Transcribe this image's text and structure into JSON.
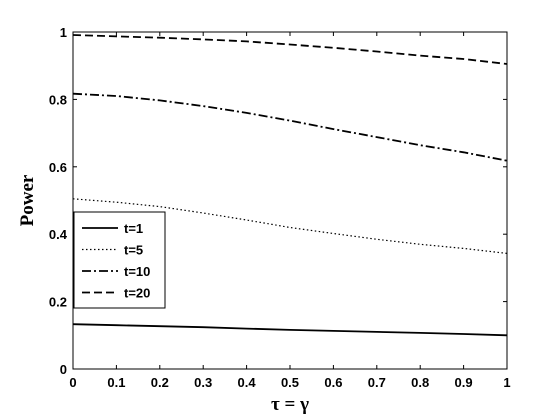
{
  "chart_data": {
    "type": "line",
    "title": "",
    "xlabel": "τ = γ",
    "ylabel": "Power",
    "xlim": [
      0,
      1
    ],
    "ylim": [
      0,
      1
    ],
    "xticks": [
      0,
      0.1,
      0.2,
      0.3,
      0.4,
      0.5,
      0.6,
      0.7,
      0.8,
      0.9,
      1
    ],
    "xtick_labels": [
      "0",
      "0.1",
      "0.2",
      "0.3",
      "0.4",
      "0.5",
      "0.6",
      "0.7",
      "0.8",
      "0.9",
      "1"
    ],
    "yticks": [
      0,
      0.2,
      0.4,
      0.6,
      0.8,
      1
    ],
    "ytick_labels": [
      "0",
      "0.2",
      "0.4",
      "0.6",
      "0.8",
      "1"
    ],
    "grid": false,
    "legend_position": "left",
    "x": [
      0,
      0.1,
      0.2,
      0.3,
      0.4,
      0.5,
      0.6,
      0.7,
      0.8,
      0.9,
      1
    ],
    "series": [
      {
        "name": "t=1",
        "style": "solid",
        "values": [
          0.133,
          0.13,
          0.127,
          0.124,
          0.12,
          0.116,
          0.113,
          0.11,
          0.107,
          0.104,
          0.1
        ]
      },
      {
        "name": "t=5",
        "style": "dotted",
        "values": [
          0.505,
          0.495,
          0.482,
          0.463,
          0.442,
          0.42,
          0.402,
          0.385,
          0.37,
          0.358,
          0.343
        ]
      },
      {
        "name": "t=10",
        "style": "dashdot",
        "values": [
          0.817,
          0.81,
          0.797,
          0.78,
          0.76,
          0.737,
          0.712,
          0.688,
          0.664,
          0.643,
          0.618
        ]
      },
      {
        "name": "t=20",
        "style": "dashed",
        "values": [
          0.991,
          0.987,
          0.983,
          0.978,
          0.972,
          0.963,
          0.953,
          0.942,
          0.93,
          0.92,
          0.905
        ]
      }
    ]
  }
}
